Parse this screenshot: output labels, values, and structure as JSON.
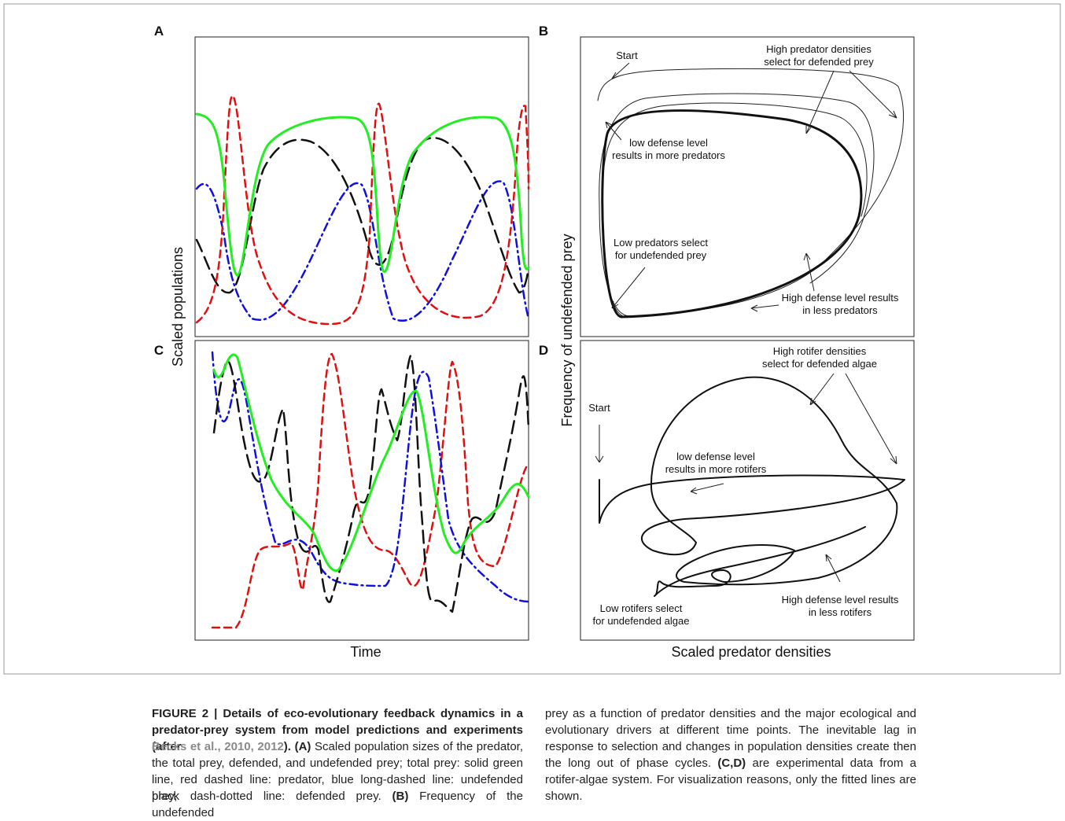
{
  "figure": {
    "panels": [
      "A",
      "B",
      "C",
      "D"
    ],
    "axis_labels": {
      "y_left": "Scaled populations",
      "x_left": "Time",
      "y_right": "Frequency of undefended prey",
      "x_right": "Scaled predator densities"
    },
    "annotations": [
      {
        "lines": [
          "Start"
        ]
      },
      {
        "lines": [
          "High predator densities",
          "select for defended prey"
        ]
      },
      {
        "lines": [
          "low defense level",
          "results in more predators"
        ]
      },
      {
        "lines": [
          "Low predators select",
          "for undefended prey"
        ]
      },
      {
        "lines": [
          "High defense level results",
          "in less predators"
        ]
      },
      {
        "lines": [
          "High rotifer densities",
          "select for defended algae"
        ]
      },
      {
        "lines": [
          "Start"
        ]
      },
      {
        "lines": [
          "low defense level",
          "results in more rotifers"
        ]
      },
      {
        "lines": [
          "Low rotifers select",
          "for undefended algae"
        ]
      },
      {
        "lines": [
          "High defense level results",
          "in less rotifers"
        ]
      }
    ]
  },
  "caption": {
    "left": [
      [
        {
          "text": "FIGURE 2 | Details of eco-evolutionary feedback dynamics in a",
          "style": "bold"
        }
      ],
      [
        {
          "text": "predator-prey system from model predictions and experiments (after",
          "style": "bold"
        }
      ],
      [
        {
          "text": "Becks et al., 2010, 2012",
          "style": "link"
        },
        {
          "text": "). ",
          "style": "bold"
        },
        {
          "text": "(A)",
          "style": "bold"
        },
        {
          "text": " Scaled population sizes of the predator,",
          "style": "normal"
        }
      ],
      [
        {
          "text": "the total prey, defended, and undefended prey; total prey: solid green",
          "style": "normal"
        }
      ],
      [
        {
          "text": "line, red dashed line: predator, blue long-dashed line: undefended prey,",
          "style": "normal"
        }
      ],
      [
        {
          "text": "black dash-dotted line: defended prey. ",
          "style": "normal"
        },
        {
          "text": "(B)",
          "style": "bold"
        },
        {
          "text": " Frequency of the undefended",
          "style": "normal"
        }
      ]
    ],
    "right": [
      [
        {
          "text": "prey as a function of predator densities and the major ecological and",
          "style": "normal"
        }
      ],
      [
        {
          "text": "evolutionary drivers at different time points. The inevitable lag in",
          "style": "normal"
        }
      ],
      [
        {
          "text": "response to selection and changes in population densities create then",
          "style": "normal"
        }
      ],
      [
        {
          "text": "the long out of phase cycles. ",
          "style": "normal"
        },
        {
          "text": "(C,D)",
          "style": "bold"
        },
        {
          "text": " are experimental data from a",
          "style": "normal"
        }
      ],
      [
        {
          "text": "rotifer-algae system. For visualization reasons, only the fitted lines are",
          "style": "normal"
        }
      ],
      [
        {
          "text": "shown.",
          "style": "normal"
        }
      ]
    ]
  }
}
